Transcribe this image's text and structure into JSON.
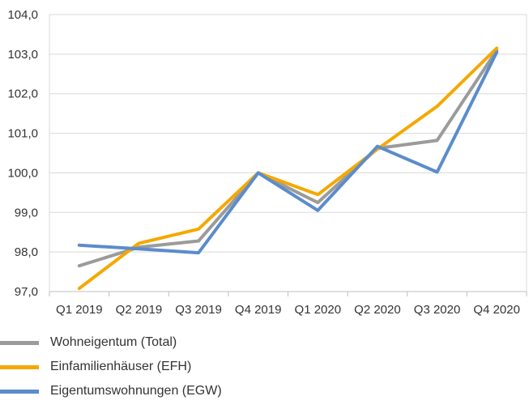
{
  "chart_data": {
    "type": "line",
    "title": "",
    "xlabel": "",
    "ylabel": "",
    "categories": [
      "Q1 2019",
      "Q2 2019",
      "Q3 2019",
      "Q4 2019",
      "Q1 2020",
      "Q2 2020",
      "Q3 2020",
      "Q4 2020"
    ],
    "ylim": [
      97.0,
      104.0
    ],
    "yticks": [
      "97,0",
      "98,0",
      "99,0",
      "100,0",
      "101,0",
      "102,0",
      "103,0",
      "104,0"
    ],
    "grid": "horizontal",
    "legend_position": "bottom-left",
    "series": [
      {
        "name": "Wohneigentum (Total)",
        "color": "#9b9b9b",
        "values": [
          97.65,
          98.12,
          98.28,
          100.0,
          99.25,
          100.62,
          100.82,
          103.1
        ]
      },
      {
        "name": "Einfamilienhäuser (EFH)",
        "color": "#f5a800",
        "values": [
          97.08,
          98.22,
          98.58,
          100.0,
          99.45,
          100.6,
          101.68,
          103.15
        ]
      },
      {
        "name": "Eigentumswohnungen (EGW)",
        "color": "#5b8ccc",
        "values": [
          98.17,
          98.08,
          97.98,
          100.0,
          99.05,
          100.67,
          100.02,
          103.05
        ]
      }
    ]
  }
}
